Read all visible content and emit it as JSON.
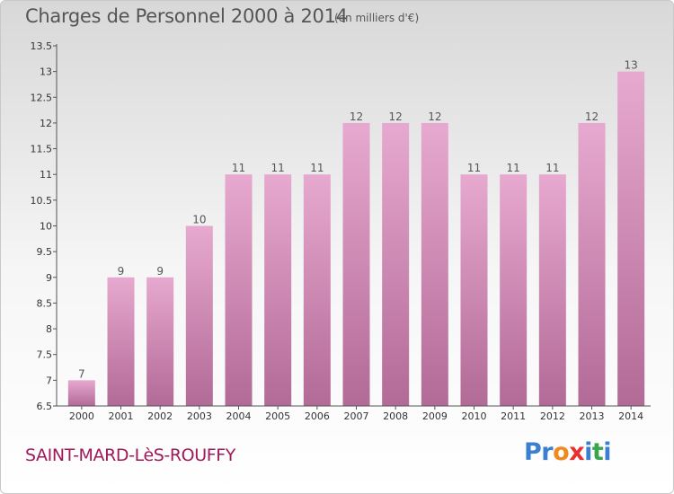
{
  "header": {
    "title": "Charges de Personnel 2000 à 2014",
    "subtitle": "(en milliers d'€)"
  },
  "footer": {
    "commune": "SAINT-MARD-LèS-ROUFFY",
    "logo_text": "Proxiti",
    "logo_letter_colors": [
      "#3b7fd0",
      "#3b7fd0",
      "#f08a1c",
      "#e8312f",
      "#3b7fd0",
      "#3aa54a",
      "#3b7fd0"
    ]
  },
  "colors": {
    "bar_top": "#e7a9cf",
    "bar_bottom": "#b26a96",
    "axis": "#555555"
  },
  "chart_data": {
    "type": "bar",
    "title": "Charges de Personnel 2000 à 2014",
    "subtitle": "(en milliers d'€)",
    "xlabel": "",
    "ylabel": "",
    "categories": [
      "2000",
      "2001",
      "2002",
      "2003",
      "2004",
      "2005",
      "2006",
      "2007",
      "2008",
      "2009",
      "2010",
      "2011",
      "2012",
      "2013",
      "2014"
    ],
    "values": [
      7,
      9,
      9,
      10,
      11,
      11,
      11,
      12,
      12,
      12,
      11,
      11,
      11,
      12,
      13
    ],
    "data_labels": [
      "7",
      "9",
      "9",
      "10",
      "11",
      "11",
      "11",
      "12",
      "12",
      "12",
      "11",
      "11",
      "11",
      "12",
      "13"
    ],
    "ylim": [
      6.5,
      13.5
    ],
    "yticks": [
      "6.5",
      "7",
      "7.5",
      "8",
      "8.5",
      "9",
      "9.5",
      "10",
      "10.5",
      "11",
      "11.5",
      "12",
      "12.5",
      "13",
      "13.5"
    ],
    "grid": false,
    "legend": "none"
  }
}
